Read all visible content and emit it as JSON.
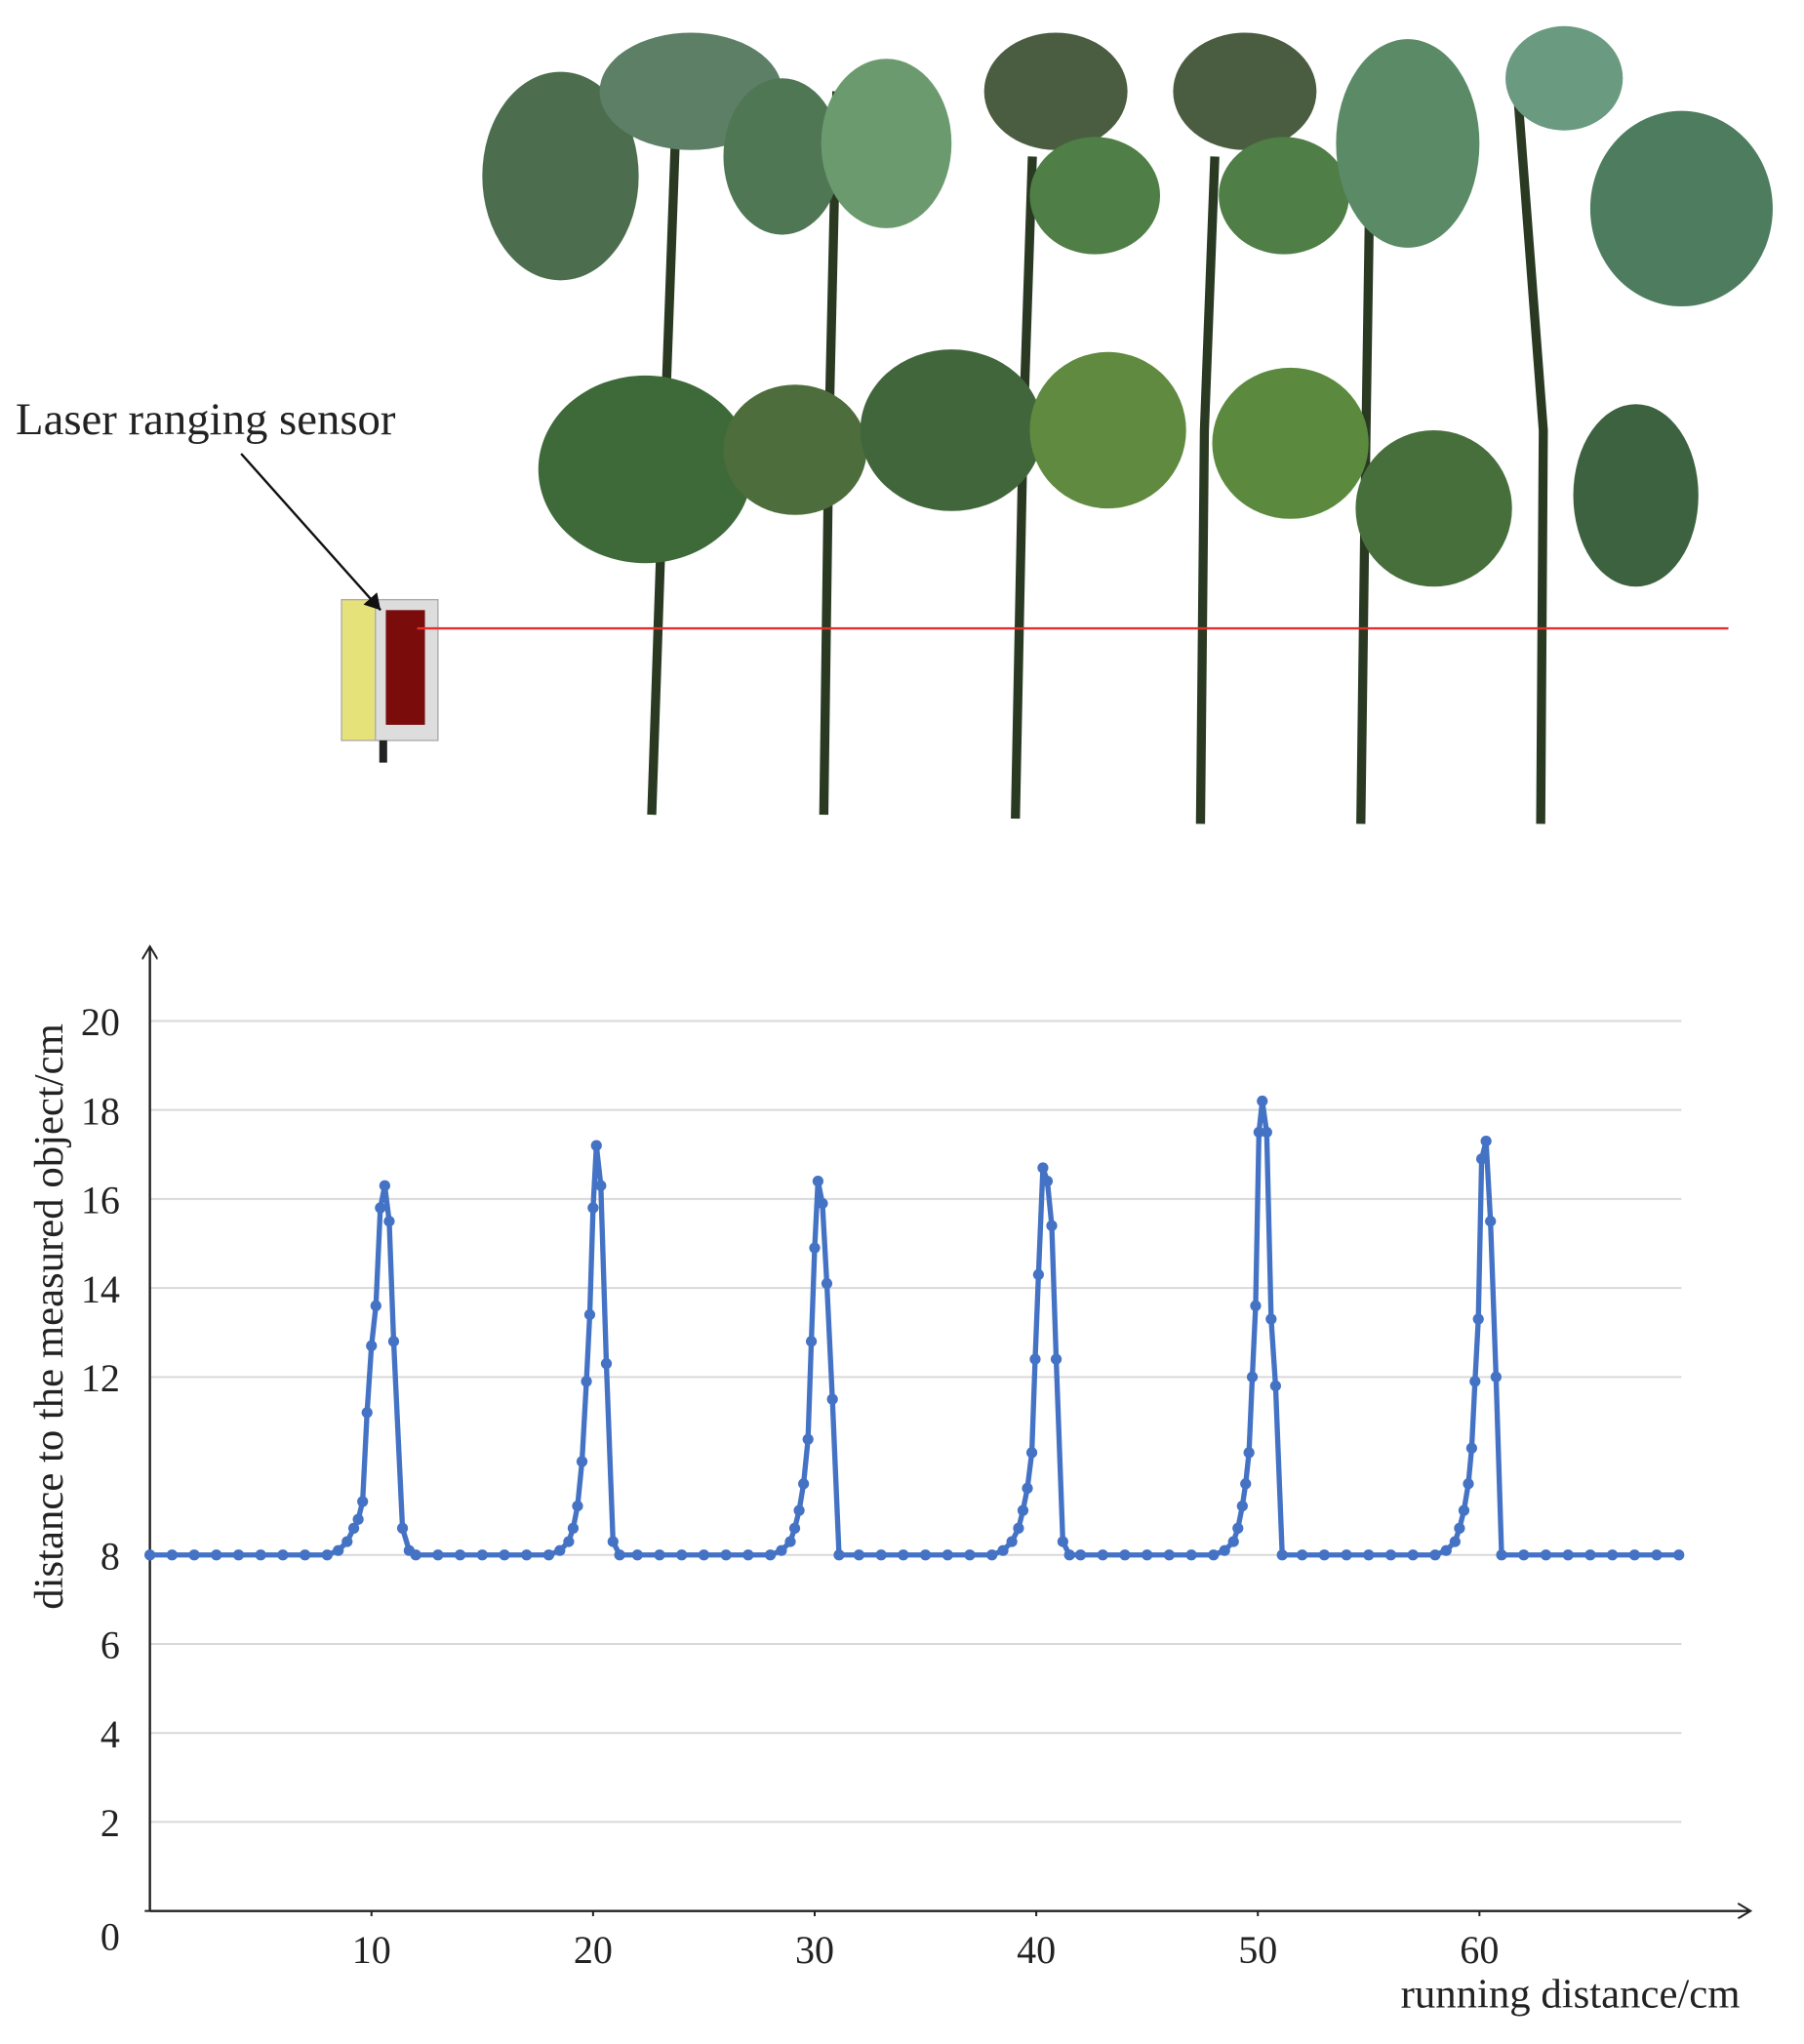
{
  "chart_data": {
    "type": "line",
    "annotation": "Laser ranging sensor",
    "x_label": "running distance/cm",
    "y_label": "distance to the measured object/cm",
    "xlim": [
      0,
      72
    ],
    "ylim": [
      0,
      21.5
    ],
    "xticks": [
      10,
      20,
      30,
      40,
      50,
      60
    ],
    "yticks": [
      0,
      2,
      4,
      6,
      8,
      12,
      14,
      16,
      18,
      20
    ],
    "grid": true,
    "x": [
      0,
      1,
      2,
      3,
      4,
      5,
      6,
      7,
      8,
      8.5,
      8.9,
      9.2,
      9.4,
      9.6,
      9.8,
      10.0,
      10.2,
      10.4,
      10.6,
      10.8,
      11.0,
      11.4,
      11.7,
      12,
      13,
      14,
      15,
      16,
      17,
      18,
      18.5,
      18.9,
      19.1,
      19.3,
      19.5,
      19.7,
      19.85,
      20.0,
      20.15,
      20.35,
      20.6,
      20.9,
      21.2,
      22,
      23,
      24,
      25,
      26,
      27,
      28,
      28.5,
      28.9,
      29.1,
      29.3,
      29.5,
      29.7,
      29.85,
      30.0,
      30.15,
      30.35,
      30.55,
      30.8,
      31.1,
      32,
      33,
      34,
      35,
      36,
      37,
      38,
      38.5,
      38.9,
      39.2,
      39.4,
      39.6,
      39.8,
      39.95,
      40.1,
      40.3,
      40.5,
      40.7,
      40.9,
      41.2,
      41.5,
      42,
      43,
      44,
      45,
      46,
      47,
      48,
      48.5,
      48.9,
      49.1,
      49.3,
      49.45,
      49.6,
      49.75,
      49.9,
      50.05,
      50.2,
      50.4,
      50.6,
      50.8,
      51.1,
      52,
      53,
      54,
      55,
      56,
      57,
      58,
      58.5,
      58.9,
      59.1,
      59.3,
      59.5,
      59.65,
      59.8,
      59.95,
      60.1,
      60.3,
      60.5,
      60.75,
      61.0,
      62,
      63,
      64,
      65,
      66,
      67,
      68,
      69
    ],
    "series": [
      {
        "color": "#4472c4",
        "values": [
          8,
          8,
          8,
          8,
          8,
          8,
          8,
          8,
          8,
          8.1,
          8.3,
          8.6,
          8.8,
          9.2,
          11.2,
          12.7,
          13.6,
          15.8,
          16.3,
          15.5,
          12.8,
          8.6,
          8.1,
          8,
          8,
          8,
          8,
          8,
          8,
          8,
          8.1,
          8.3,
          8.6,
          9.1,
          10.1,
          11.9,
          13.4,
          15.8,
          17.2,
          16.3,
          12.3,
          8.3,
          8,
          8,
          8,
          8,
          8,
          8,
          8,
          8,
          8.1,
          8.3,
          8.6,
          9,
          9.6,
          10.6,
          12.8,
          14.9,
          16.4,
          15.9,
          14.1,
          11.5,
          8,
          8,
          8,
          8,
          8,
          8,
          8,
          8,
          8.1,
          8.3,
          8.6,
          9,
          9.5,
          10.3,
          12.4,
          14.3,
          16.7,
          16.4,
          15.4,
          12.4,
          8.3,
          8,
          8,
          8,
          8,
          8,
          8,
          8,
          8,
          8.1,
          8.3,
          8.6,
          9.1,
          9.6,
          10.3,
          12,
          13.6,
          17.5,
          18.2,
          17.5,
          13.3,
          11.8,
          8,
          8,
          8,
          8,
          8,
          8,
          8,
          8,
          8.1,
          8.3,
          8.6,
          9,
          9.6,
          10.4,
          11.9,
          13.3,
          16.9,
          17.3,
          15.5,
          12,
          8,
          8,
          8,
          8,
          8,
          8,
          8,
          8,
          8
        ]
      }
    ]
  }
}
